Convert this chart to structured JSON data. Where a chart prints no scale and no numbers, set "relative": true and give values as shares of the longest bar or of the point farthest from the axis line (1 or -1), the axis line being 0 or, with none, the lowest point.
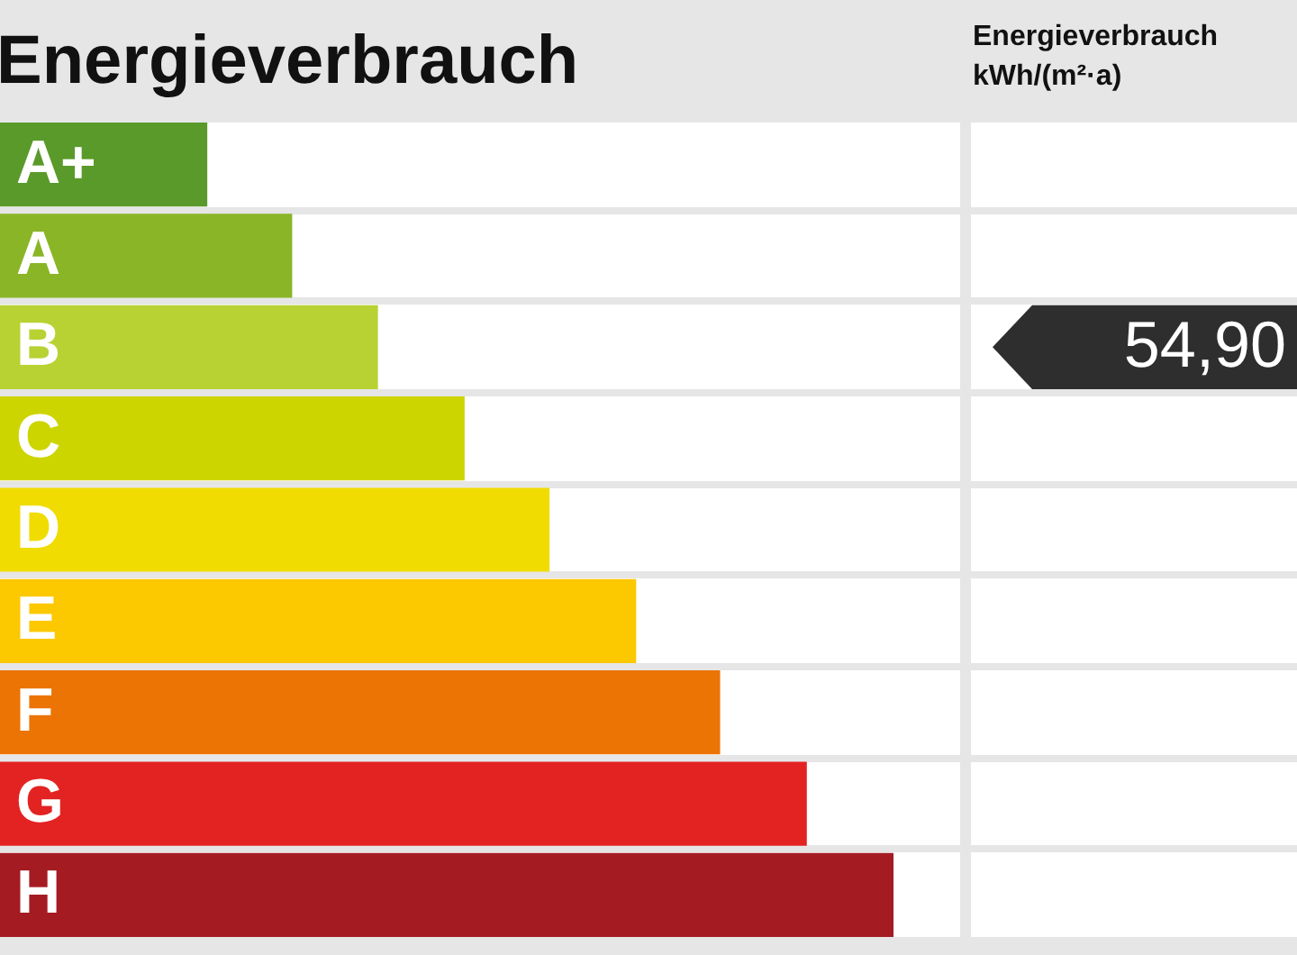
{
  "chart_data": {
    "type": "bar",
    "orientation": "horizontal",
    "relative": true,
    "title": "Energieverbrauch",
    "categories": [
      "A+",
      "A",
      "B",
      "C",
      "D",
      "E",
      "F",
      "G",
      "H"
    ],
    "values": [
      0.232,
      0.327,
      0.423,
      0.52,
      0.615,
      0.712,
      0.806,
      0.903,
      1
    ],
    "colors": [
      "#5a9a2a",
      "#8ab526",
      "#b7d232",
      "#cdd500",
      "#f0dc00",
      "#fcc800",
      "#ec7404",
      "#e32322",
      "#a51b22"
    ],
    "annotations": [
      "Energieverbrauch kWh/(m²·a)",
      "54,90"
    ]
  }
}
